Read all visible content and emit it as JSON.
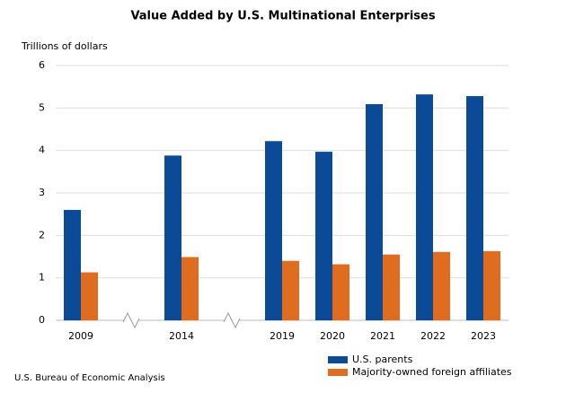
{
  "chart_data": {
    "type": "bar",
    "title": "Value Added by U.S. Multinational Enterprises",
    "y_label": "Trillions of dollars",
    "source": "U.S. Bureau of Economic Analysis",
    "categories": [
      "2009",
      null,
      "2014",
      null,
      "2019",
      "2020",
      "2021",
      "2022",
      "2023"
    ],
    "series": [
      {
        "name": "U.S. parents",
        "color": "#0b4a96",
        "values": [
          2.6,
          null,
          3.88,
          null,
          4.22,
          3.97,
          5.09,
          5.32,
          5.28
        ]
      },
      {
        "name": "Majority-owned foreign affiliates",
        "color": "#e06c1f",
        "values": [
          1.13,
          null,
          1.49,
          null,
          1.4,
          1.32,
          1.55,
          1.61,
          1.63
        ]
      }
    ],
    "ylim": [
      0,
      6
    ],
    "yticks": [
      0,
      1,
      2,
      3,
      4,
      5,
      6
    ],
    "grid": true,
    "legend": "bottom-right"
  }
}
